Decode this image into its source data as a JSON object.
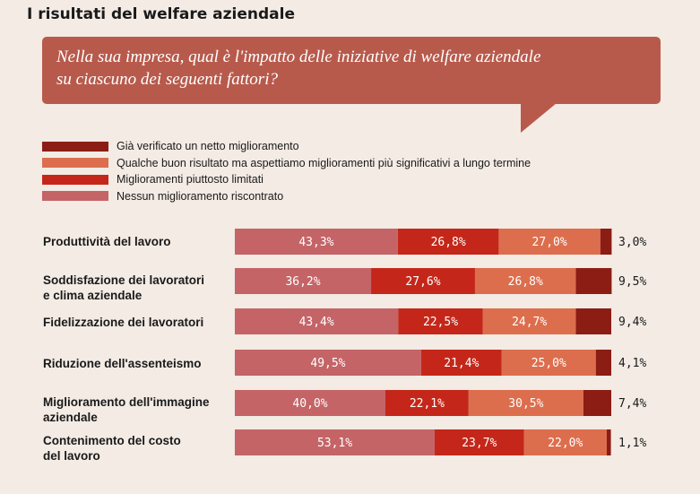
{
  "title": "I risultati del welfare aziendale",
  "question": {
    "line1": "Nella sua impresa, qual è l'impatto delle iniziative di welfare aziendale",
    "line2": "su ciascuno dei seguenti fattori?"
  },
  "colors": {
    "background": "#f3ebe4",
    "bubble": "#b75a4c"
  },
  "chart_data": {
    "type": "bar",
    "orientation": "horizontal",
    "stacked": true,
    "categories": [
      [
        "Produttività del lavoro"
      ],
      [
        "Soddisfazione dei lavoratori",
        "e clima aziendale"
      ],
      [
        "Fidelizzazione dei lavoratori"
      ],
      [
        "Riduzione dell'assenteismo"
      ],
      [
        "Miglioramento dell'immagine",
        "aziendale"
      ],
      [
        "Contenimento del costo",
        "del lavoro"
      ]
    ],
    "legend": [
      {
        "label": "Già verificato un netto miglioramento",
        "color": "#8b1d14"
      },
      {
        "label": "Qualche buon risultato ma aspettiamo miglioramenti più significativi a lungo termine",
        "color": "#dc6e4d"
      },
      {
        "label": "Miglioramenti piuttosto limitati",
        "color": "#c42719"
      },
      {
        "label": "Nessun miglioramento riscontrato",
        "color": "#c46467"
      }
    ],
    "series": [
      {
        "name": "Nessun miglioramento riscontrato",
        "color": "#c46467",
        "values": [
          43.3,
          36.2,
          43.4,
          49.5,
          40.0,
          53.1
        ],
        "labels": [
          "43,3%",
          "36,2%",
          "43,4%",
          "49,5%",
          "40,0%",
          "53,1%"
        ]
      },
      {
        "name": "Miglioramenti piuttosto limitati",
        "color": "#c42719",
        "values": [
          26.8,
          27.6,
          22.5,
          21.4,
          22.1,
          23.7
        ],
        "labels": [
          "26,8%",
          "27,6%",
          "22,5%",
          "21,4%",
          "22,1%",
          "23,7%"
        ]
      },
      {
        "name": "Qualche buon risultato ma aspettiamo miglioramenti più significativi a lungo termine",
        "color": "#dc6e4d",
        "values": [
          27.0,
          26.8,
          24.7,
          25.0,
          30.5,
          22.0
        ],
        "labels": [
          "27,0%",
          "26,8%",
          "24,7%",
          "25,0%",
          "30,5%",
          "22,0%"
        ]
      },
      {
        "name": "Già verificato un netto miglioramento",
        "color": "#8b1d14",
        "values": [
          3.0,
          9.5,
          9.4,
          4.1,
          7.4,
          1.1
        ],
        "labels": [
          "3,0%",
          "9,5%",
          "9,4%",
          "4,1%",
          "7,4%",
          "1,1%"
        ]
      }
    ],
    "xlim": [
      0,
      100
    ]
  }
}
